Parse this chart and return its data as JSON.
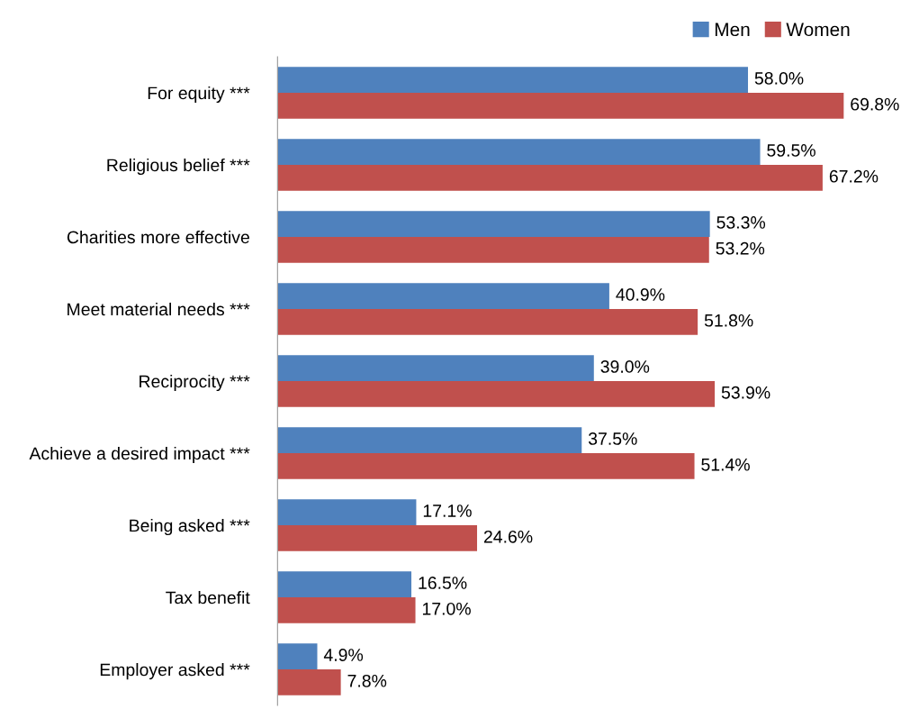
{
  "chart_data": {
    "type": "bar",
    "orientation": "horizontal",
    "categories": [
      "For equity ***",
      "Religious belief ***",
      "Charities more effective",
      "Meet material needs ***",
      "Reciprocity ***",
      "Achieve a desired impact ***",
      "Being asked ***",
      "Tax benefit",
      "Employer asked ***"
    ],
    "series": [
      {
        "name": "Men",
        "color": "#4f81bd",
        "values": [
          58.0,
          59.5,
          53.3,
          40.9,
          39.0,
          37.5,
          17.1,
          16.5,
          4.9
        ],
        "value_labels": [
          "58.0%",
          "59.5%",
          "53.3%",
          "40.9%",
          "39.0%",
          "37.5%",
          "17.1%",
          "16.5%",
          "4.9%"
        ]
      },
      {
        "name": "Women",
        "color": "#c0504d",
        "values": [
          69.8,
          67.2,
          53.2,
          51.8,
          53.9,
          51.4,
          24.6,
          17.0,
          7.8
        ],
        "value_labels": [
          "69.8%",
          "67.2%",
          "53.2%",
          "51.8%",
          "53.9%",
          "51.4%",
          "24.6%",
          "17.0%",
          "7.8%"
        ]
      }
    ],
    "legend": "top right",
    "grid": false
  }
}
